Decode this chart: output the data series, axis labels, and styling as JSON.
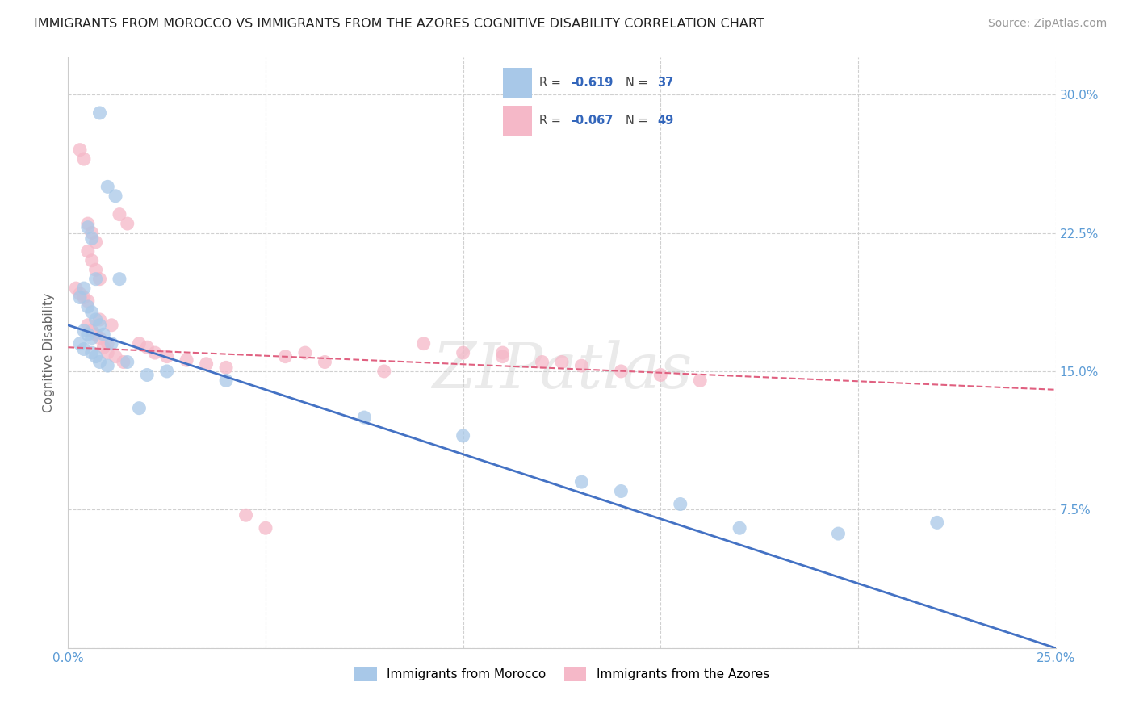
{
  "title": "IMMIGRANTS FROM MOROCCO VS IMMIGRANTS FROM THE AZORES COGNITIVE DISABILITY CORRELATION CHART",
  "source": "Source: ZipAtlas.com",
  "ylabel": "Cognitive Disability",
  "xlim": [
    0.0,
    0.25
  ],
  "ylim": [
    0.0,
    0.32
  ],
  "xticks": [
    0.0,
    0.05,
    0.1,
    0.15,
    0.2,
    0.25
  ],
  "yticks": [
    0.0,
    0.075,
    0.15,
    0.225,
    0.3
  ],
  "grid_color": "#d0d0d0",
  "background_color": "#ffffff",
  "morocco_dot_color": "#a8c8e8",
  "azores_dot_color": "#f5b8c8",
  "morocco_line_color": "#4472c4",
  "azores_line_color": "#e06080",
  "legend_R_morocco": "-0.619",
  "legend_N_morocco": "37",
  "legend_R_azores": "-0.067",
  "legend_N_azores": "49",
  "legend_label_morocco": "Immigrants from Morocco",
  "legend_label_azores": "Immigrants from the Azores",
  "watermark": "ZIPatlas",
  "tick_color": "#5b9bd5",
  "morocco_x": [
    0.008,
    0.01,
    0.012,
    0.005,
    0.006,
    0.007,
    0.004,
    0.003,
    0.005,
    0.006,
    0.007,
    0.008,
    0.004,
    0.005,
    0.006,
    0.003,
    0.004,
    0.006,
    0.007,
    0.008,
    0.01,
    0.009,
    0.011,
    0.013,
    0.015,
    0.02,
    0.018,
    0.025,
    0.04,
    0.075,
    0.1,
    0.13,
    0.14,
    0.155,
    0.17,
    0.195,
    0.22
  ],
  "morocco_y": [
    0.29,
    0.25,
    0.245,
    0.228,
    0.222,
    0.2,
    0.195,
    0.19,
    0.185,
    0.182,
    0.178,
    0.175,
    0.172,
    0.17,
    0.168,
    0.165,
    0.162,
    0.16,
    0.158,
    0.155,
    0.153,
    0.17,
    0.165,
    0.2,
    0.155,
    0.148,
    0.13,
    0.15,
    0.145,
    0.125,
    0.115,
    0.09,
    0.085,
    0.078,
    0.065,
    0.062,
    0.068
  ],
  "azores_x": [
    0.002,
    0.003,
    0.004,
    0.005,
    0.003,
    0.004,
    0.005,
    0.006,
    0.007,
    0.005,
    0.006,
    0.007,
    0.008,
    0.005,
    0.006,
    0.007,
    0.008,
    0.01,
    0.009,
    0.008,
    0.01,
    0.012,
    0.011,
    0.014,
    0.013,
    0.015,
    0.018,
    0.02,
    0.022,
    0.025,
    0.03,
    0.035,
    0.04,
    0.055,
    0.06,
    0.065,
    0.08,
    0.09,
    0.1,
    0.11,
    0.12,
    0.13,
    0.14,
    0.15,
    0.16,
    0.11,
    0.125,
    0.05,
    0.045
  ],
  "azores_y": [
    0.195,
    0.192,
    0.19,
    0.188,
    0.27,
    0.265,
    0.23,
    0.225,
    0.22,
    0.215,
    0.21,
    0.205,
    0.2,
    0.175,
    0.172,
    0.17,
    0.168,
    0.165,
    0.163,
    0.178,
    0.16,
    0.158,
    0.175,
    0.155,
    0.235,
    0.23,
    0.165,
    0.163,
    0.16,
    0.158,
    0.156,
    0.154,
    0.152,
    0.158,
    0.16,
    0.155,
    0.15,
    0.165,
    0.16,
    0.158,
    0.155,
    0.153,
    0.15,
    0.148,
    0.145,
    0.16,
    0.155,
    0.065,
    0.072
  ],
  "morocco_line_x": [
    0.0,
    0.25
  ],
  "morocco_line_y": [
    0.175,
    0.0
  ],
  "azores_line_x": [
    0.0,
    0.25
  ],
  "azores_line_y": [
    0.163,
    0.14
  ]
}
